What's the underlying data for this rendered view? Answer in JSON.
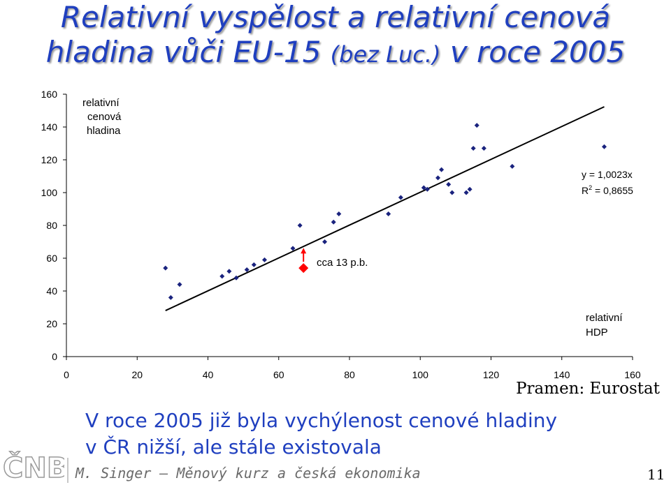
{
  "title": {
    "line1": "Relativní vyspělost a relativní cenová",
    "line2_a": "hladina vůči EU-15 ",
    "line2_b": "(bez Luc.)",
    "line2_c": " v roce 2005"
  },
  "chart_data": {
    "type": "scatter",
    "xlim": [
      0,
      160
    ],
    "ylim": [
      0,
      160
    ],
    "xticks": [
      0,
      20,
      40,
      60,
      80,
      100,
      120,
      140,
      160
    ],
    "yticks": [
      0,
      20,
      40,
      60,
      80,
      100,
      120,
      140,
      160
    ],
    "xlabel": "relativní HDP",
    "ylabel": "relativní cenová hladina",
    "grid": false,
    "points": [
      [
        28,
        54
      ],
      [
        29.5,
        36
      ],
      [
        32,
        44
      ],
      [
        44,
        49
      ],
      [
        46,
        52
      ],
      [
        48,
        48
      ],
      [
        51,
        53
      ],
      [
        53,
        56
      ],
      [
        56,
        59
      ],
      [
        64,
        66
      ],
      [
        66,
        80
      ],
      [
        73,
        70
      ],
      [
        75.5,
        82
      ],
      [
        77,
        87
      ],
      [
        91,
        87
      ],
      [
        94.5,
        97
      ],
      [
        101,
        103
      ],
      [
        102,
        102
      ],
      [
        105,
        109
      ],
      [
        106,
        114
      ],
      [
        108,
        105
      ],
      [
        109,
        100
      ],
      [
        113,
        100
      ],
      [
        114,
        102
      ],
      [
        115,
        127
      ],
      [
        116,
        141
      ],
      [
        118,
        127
      ],
      [
        126,
        116
      ],
      [
        152,
        128
      ]
    ],
    "highlight_point": [
      67,
      54
    ],
    "trendline": {
      "slope": 1.0023,
      "x_range": [
        28,
        152
      ],
      "equation": "y = 1,0023x",
      "r2": "0,8655"
    },
    "annotations": {
      "arrow_label": "cca 13 p.b."
    },
    "colors": {
      "points": "#1a237e",
      "trend": "#000000",
      "highlight": "#ff0000"
    }
  },
  "text": {
    "eq_line": "y = 1,0023x",
    "r2_label": "R",
    "r2_sup": "2",
    "r2_value": " = 0,8655",
    "ylabel_1": "relativní",
    "ylabel_2": "cenová",
    "ylabel_3": "hladina",
    "xlabel_1": "relativní",
    "xlabel_2": "HDP",
    "gap_label": "cca 13 p.b."
  },
  "source": "Pramen: Eurostat",
  "subtitle": {
    "line1": "V roce 2005 již byla vychýlenost cenové hladiny",
    "line2": "v ČR nižší, ale stále existovala"
  },
  "footer": "M. Singer – Měnový kurz a česká ekonomika",
  "page_number": "11",
  "logo_text": "ČNB"
}
